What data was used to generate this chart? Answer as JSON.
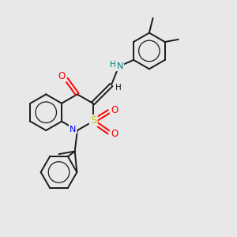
{
  "background_color": "#e8e8e8",
  "bond_color": "#1a1a1a",
  "atom_colors": {
    "O": "#ff0000",
    "N": "#0000ff",
    "S": "#cccc00",
    "NH": "#008080",
    "C": "#1a1a1a"
  },
  "fig_width": 3.0,
  "fig_height": 3.0,
  "dpi": 100
}
